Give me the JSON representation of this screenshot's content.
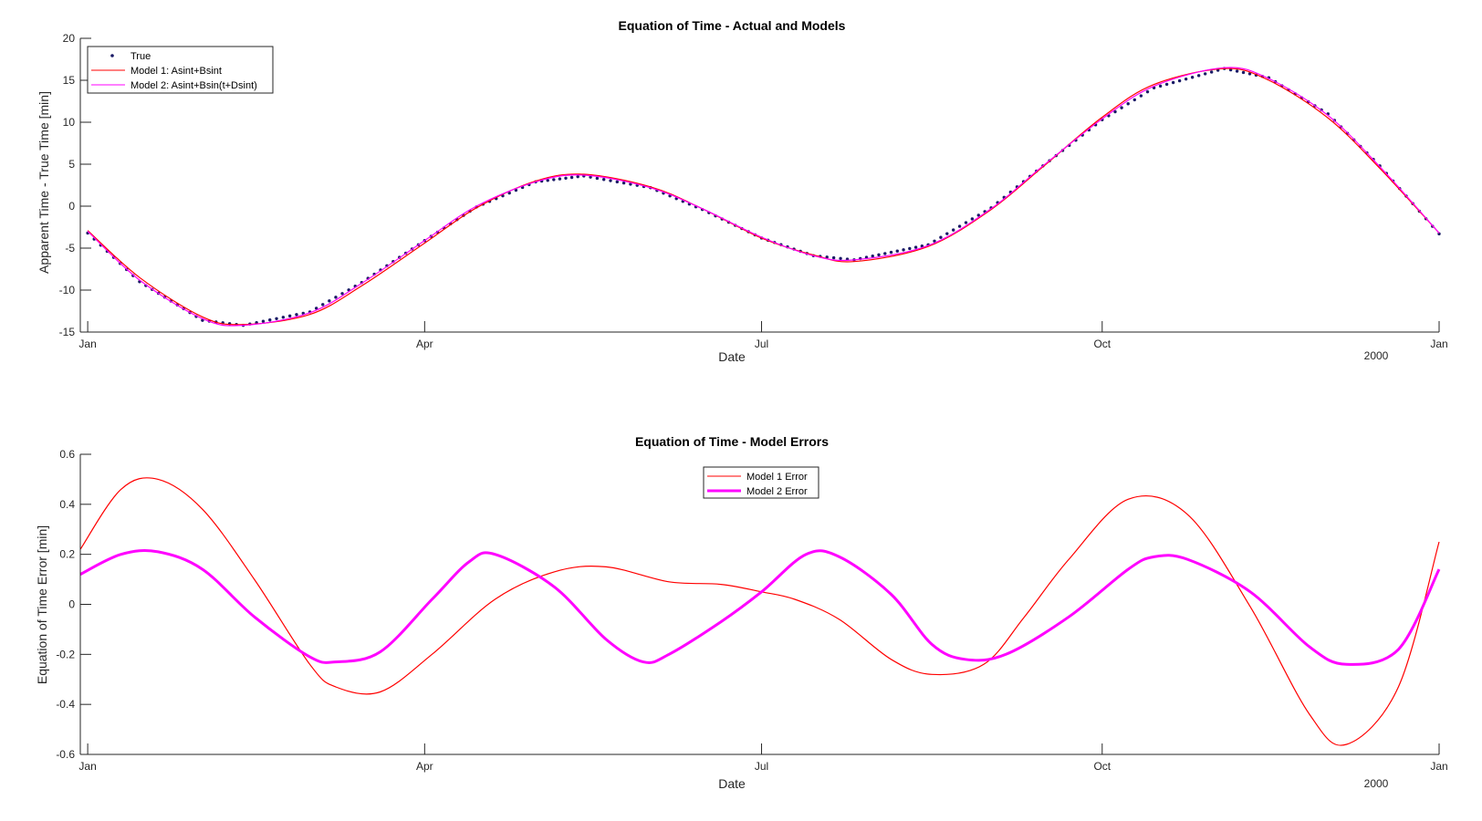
{
  "chart_data": [
    {
      "type": "line",
      "title": "Equation of Time - Actual and Models",
      "xlabel": "Date",
      "ylabel": "Apparent Time - True Time [min]",
      "x_axis_kind": "date",
      "xlim": [
        "1999-12-30",
        "2000-12-31"
      ],
      "xticks": [
        {
          "date": "2000-01-01",
          "label": "Jan"
        },
        {
          "date": "2000-04-01",
          "label": "Apr"
        },
        {
          "date": "2000-07-01",
          "label": "Jul"
        },
        {
          "date": "2000-10-01",
          "label": "Oct"
        },
        {
          "date": "2001-01-01",
          "label": "Jan"
        }
      ],
      "x_secondary_label": "2000",
      "ylim": [
        -15,
        20
      ],
      "yticks": [
        -15,
        -10,
        -5,
        0,
        5,
        10,
        15,
        20
      ],
      "legend_position": "top-left",
      "series": [
        {
          "name": "True",
          "style": "dotted-markers",
          "color": "#1a1a66",
          "x": [
            "2000-01-01",
            "2000-01-15",
            "2000-02-01",
            "2000-02-12",
            "2000-03-01",
            "2000-03-15",
            "2000-04-01",
            "2000-04-15",
            "2000-05-01",
            "2000-05-14",
            "2000-06-01",
            "2000-06-15",
            "2000-07-01",
            "2000-07-15",
            "2000-07-26",
            "2000-08-15",
            "2000-09-01",
            "2000-09-15",
            "2000-10-01",
            "2000-10-15",
            "2000-11-03",
            "2000-11-15",
            "2000-12-01",
            "2000-12-15",
            "2000-12-31"
          ],
          "y": [
            -3.2,
            -9.0,
            -13.6,
            -14.2,
            -12.6,
            -9.1,
            -4.1,
            -0.1,
            2.9,
            3.6,
            2.2,
            -0.4,
            -3.8,
            -5.9,
            -6.4,
            -4.6,
            -0.2,
            4.8,
            10.3,
            14.1,
            16.4,
            15.3,
            11.0,
            4.8,
            -3.3
          ]
        },
        {
          "name": "Model 1: Asint+Bsint",
          "style": "line",
          "color": "#ff0000",
          "x": [
            "2000-01-01",
            "2000-01-15",
            "2000-02-01",
            "2000-02-12",
            "2000-03-01",
            "2000-03-15",
            "2000-04-01",
            "2000-04-15",
            "2000-05-01",
            "2000-05-14",
            "2000-06-01",
            "2000-06-15",
            "2000-07-01",
            "2000-07-15",
            "2000-07-26",
            "2000-08-15",
            "2000-09-01",
            "2000-09-15",
            "2000-10-01",
            "2000-10-15",
            "2000-11-03",
            "2000-11-15",
            "2000-12-01",
            "2000-12-15",
            "2000-12-31"
          ],
          "y": [
            -2.9,
            -8.5,
            -13.2,
            -14.1,
            -12.9,
            -9.5,
            -4.4,
            -0.2,
            3.0,
            3.8,
            2.3,
            -0.3,
            -3.8,
            -5.8,
            -6.6,
            -4.8,
            -0.4,
            4.7,
            10.6,
            14.5,
            16.4,
            15.0,
            10.5,
            4.5,
            -3.2
          ]
        },
        {
          "name": "Model 2: Asint+Bsin(t+Dsint)",
          "style": "line",
          "color": "#ff00ff",
          "x": [
            "2000-01-01",
            "2000-01-15",
            "2000-02-01",
            "2000-02-12",
            "2000-03-01",
            "2000-03-15",
            "2000-04-01",
            "2000-04-15",
            "2000-05-01",
            "2000-05-14",
            "2000-06-01",
            "2000-06-15",
            "2000-07-01",
            "2000-07-15",
            "2000-07-26",
            "2000-08-15",
            "2000-09-01",
            "2000-09-15",
            "2000-10-01",
            "2000-10-15",
            "2000-11-03",
            "2000-11-15",
            "2000-12-01",
            "2000-12-15",
            "2000-12-31"
          ],
          "y": [
            -3.0,
            -8.8,
            -13.4,
            -14.2,
            -12.7,
            -9.2,
            -4.1,
            0.0,
            2.9,
            3.7,
            2.2,
            -0.3,
            -3.7,
            -5.9,
            -6.4,
            -4.7,
            -0.3,
            4.8,
            10.4,
            14.3,
            16.5,
            15.2,
            10.8,
            4.7,
            -3.2
          ]
        }
      ]
    },
    {
      "type": "line",
      "title": "Equation of Time - Model Errors",
      "xlabel": "Date",
      "ylabel": "Equation of Time Error [min]",
      "x_axis_kind": "date",
      "xlim": [
        "1999-12-30",
        "2000-12-31"
      ],
      "xticks": [
        {
          "date": "2000-01-01",
          "label": "Jan"
        },
        {
          "date": "2000-04-01",
          "label": "Apr"
        },
        {
          "date": "2000-07-01",
          "label": "Jul"
        },
        {
          "date": "2000-10-01",
          "label": "Oct"
        },
        {
          "date": "2001-01-01",
          "label": "Jan"
        }
      ],
      "x_secondary_label": "2000",
      "ylim": [
        -0.6,
        0.6
      ],
      "yticks": [
        -0.6,
        -0.4,
        -0.2,
        0,
        0.2,
        0.4,
        0.6
      ],
      "legend_position": "top-center",
      "series": [
        {
          "name": "Model 1 Error",
          "style": "line",
          "color": "#ff0000",
          "x": [
            "1999-12-30",
            "2000-01-10",
            "2000-01-20",
            "2000-02-01",
            "2000-02-15",
            "2000-03-01",
            "2000-03-08",
            "2000-03-20",
            "2000-04-03",
            "2000-04-20",
            "2000-05-06",
            "2000-05-20",
            "2000-06-06",
            "2000-06-20",
            "2000-07-01",
            "2000-07-10",
            "2000-07-22",
            "2000-08-05",
            "2000-08-16",
            "2000-08-30",
            "2000-09-10",
            "2000-09-22",
            "2000-10-08",
            "2000-10-24",
            "2000-11-10",
            "2000-11-26",
            "2000-12-06",
            "2000-12-20",
            "2000-12-31"
          ],
          "y": [
            0.22,
            0.46,
            0.5,
            0.38,
            0.1,
            -0.24,
            -0.33,
            -0.35,
            -0.2,
            0.02,
            0.13,
            0.15,
            0.09,
            0.08,
            0.05,
            0.02,
            -0.06,
            -0.22,
            -0.28,
            -0.24,
            -0.05,
            0.18,
            0.42,
            0.36,
            -0.01,
            -0.44,
            -0.56,
            -0.33,
            0.25
          ]
        },
        {
          "name": "Model 2 Error",
          "style": "thick-line",
          "color": "#ff00ff",
          "x": [
            "1999-12-30",
            "2000-01-10",
            "2000-01-20",
            "2000-02-01",
            "2000-02-15",
            "2000-03-01",
            "2000-03-08",
            "2000-03-20",
            "2000-04-03",
            "2000-04-13",
            "2000-04-20",
            "2000-05-06",
            "2000-05-20",
            "2000-05-30",
            "2000-06-06",
            "2000-06-20",
            "2000-07-01",
            "2000-07-13",
            "2000-07-22",
            "2000-08-05",
            "2000-08-16",
            "2000-08-25",
            "2000-09-05",
            "2000-09-22",
            "2000-10-08",
            "2000-10-15",
            "2000-10-24",
            "2000-11-10",
            "2000-11-26",
            "2000-12-06",
            "2000-12-20",
            "2000-12-31"
          ],
          "y": [
            0.12,
            0.2,
            0.21,
            0.14,
            -0.05,
            -0.21,
            -0.23,
            -0.19,
            0.02,
            0.17,
            0.2,
            0.07,
            -0.14,
            -0.23,
            -0.2,
            -0.07,
            0.05,
            0.2,
            0.19,
            0.04,
            -0.16,
            -0.22,
            -0.2,
            -0.05,
            0.14,
            0.19,
            0.18,
            0.05,
            -0.17,
            -0.24,
            -0.18,
            0.14
          ]
        }
      ]
    }
  ]
}
